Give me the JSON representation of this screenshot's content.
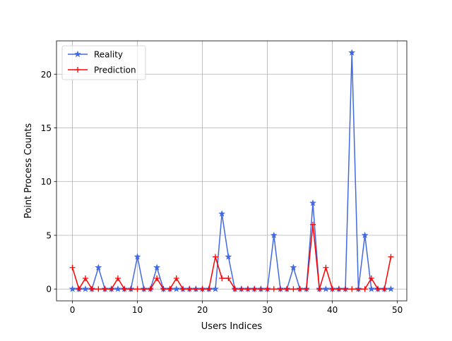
{
  "chart_data": {
    "type": "line",
    "title": "",
    "xlabel": "Users Indices",
    "ylabel": "Point Process Counts",
    "xlim": [
      -2.45,
      51.45
    ],
    "ylim": [
      -1.1,
      23.1
    ],
    "xticks": [
      0,
      10,
      20,
      30,
      40,
      50
    ],
    "yticks": [
      0,
      5,
      10,
      15,
      20
    ],
    "grid": true,
    "legend_position": "upper-left",
    "x": [
      0,
      1,
      2,
      3,
      4,
      5,
      6,
      7,
      8,
      9,
      10,
      11,
      12,
      13,
      14,
      15,
      16,
      17,
      18,
      19,
      20,
      21,
      22,
      23,
      24,
      25,
      26,
      27,
      28,
      29,
      30,
      31,
      32,
      33,
      34,
      35,
      36,
      37,
      38,
      39,
      40,
      41,
      42,
      43,
      44,
      45,
      46,
      47,
      48,
      49
    ],
    "series": [
      {
        "name": "Reality",
        "color": "#4169e1",
        "marker": "star",
        "values": [
          0,
          0,
          0,
          0,
          2,
          0,
          0,
          0,
          0,
          0,
          3,
          0,
          0,
          2,
          0,
          0,
          0,
          0,
          0,
          0,
          0,
          0,
          0,
          7,
          3,
          0,
          0,
          0,
          0,
          0,
          0,
          5,
          0,
          0,
          2,
          0,
          0,
          8,
          0,
          0,
          0,
          0,
          0,
          22,
          0,
          5,
          0,
          0,
          0,
          0
        ]
      },
      {
        "name": "Prediction",
        "color": "#ff0000",
        "marker": "plus",
        "values": [
          2,
          0,
          1,
          0,
          0,
          0,
          0,
          1,
          0,
          0,
          0,
          0,
          0,
          1,
          0,
          0,
          1,
          0,
          0,
          0,
          0,
          0,
          3,
          1,
          1,
          0,
          0,
          0,
          0,
          0,
          0,
          0,
          0,
          0,
          0,
          0,
          0,
          6,
          0,
          2,
          0,
          0,
          0,
          0,
          0,
          0,
          1,
          0,
          0,
          3
        ]
      }
    ]
  }
}
